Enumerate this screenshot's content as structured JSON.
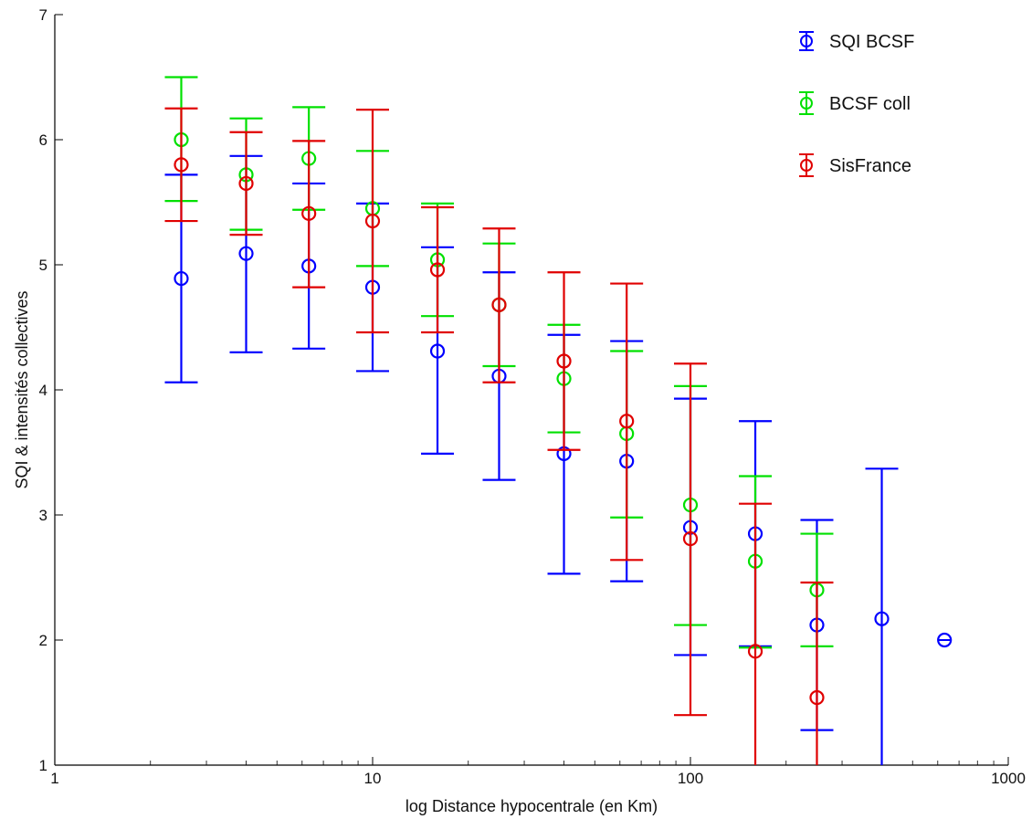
{
  "chart_data": {
    "type": "scatter",
    "xscale": "log",
    "xlim": [
      1,
      1000
    ],
    "ylim": [
      1,
      7
    ],
    "xticks": [
      1,
      10,
      100,
      1000
    ],
    "xtick_labels": [
      "1",
      "10",
      "100",
      "1000"
    ],
    "yticks": [
      1,
      2,
      3,
      4,
      5,
      6,
      7
    ],
    "ytick_labels": [
      "1",
      "2",
      "3",
      "4",
      "5",
      "6",
      "7"
    ],
    "xlabel": "log Distance hypocentrale (en Km)",
    "ylabel": "SQI & intensités collectives",
    "grid": false,
    "legend_position": "top-right",
    "series": [
      {
        "name": "SQI BCSF",
        "color": "#0000ff",
        "points": [
          {
            "x": 2.5,
            "y": 4.89,
            "lower": 4.06,
            "upper": 5.72
          },
          {
            "x": 4.0,
            "y": 5.09,
            "lower": 4.3,
            "upper": 5.87
          },
          {
            "x": 6.3,
            "y": 4.99,
            "lower": 4.33,
            "upper": 5.65
          },
          {
            "x": 10,
            "y": 4.82,
            "lower": 4.15,
            "upper": 5.49
          },
          {
            "x": 16,
            "y": 4.31,
            "lower": 3.49,
            "upper": 5.14
          },
          {
            "x": 25,
            "y": 4.11,
            "lower": 3.28,
            "upper": 4.94
          },
          {
            "x": 40,
            "y": 3.49,
            "lower": 2.53,
            "upper": 4.44
          },
          {
            "x": 63,
            "y": 3.43,
            "lower": 2.47,
            "upper": 4.39
          },
          {
            "x": 100,
            "y": 2.9,
            "lower": 1.88,
            "upper": 3.93
          },
          {
            "x": 160,
            "y": 2.85,
            "lower": 1.95,
            "upper": 3.75
          },
          {
            "x": 250,
            "y": 2.12,
            "lower": 1.28,
            "upper": 2.96
          },
          {
            "x": 400,
            "y": 2.17,
            "lower": 0.98,
            "upper": 3.37
          },
          {
            "x": 630,
            "y": 2.0,
            "lower": 2.0,
            "upper": 2.0
          }
        ]
      },
      {
        "name": "BCSF coll",
        "color": "#00e000",
        "points": [
          {
            "x": 2.5,
            "y": 6.0,
            "lower": 5.51,
            "upper": 6.5
          },
          {
            "x": 4.0,
            "y": 5.72,
            "lower": 5.28,
            "upper": 6.17
          },
          {
            "x": 6.3,
            "y": 5.85,
            "lower": 5.44,
            "upper": 6.26
          },
          {
            "x": 10,
            "y": 5.45,
            "lower": 4.99,
            "upper": 5.91
          },
          {
            "x": 16,
            "y": 5.04,
            "lower": 4.59,
            "upper": 5.49
          },
          {
            "x": 25,
            "y": 4.68,
            "lower": 4.19,
            "upper": 5.17
          },
          {
            "x": 40,
            "y": 4.09,
            "lower": 3.66,
            "upper": 4.52
          },
          {
            "x": 63,
            "y": 3.65,
            "lower": 2.98,
            "upper": 4.31
          },
          {
            "x": 100,
            "y": 3.08,
            "lower": 2.12,
            "upper": 4.03
          },
          {
            "x": 160,
            "y": 2.63,
            "lower": 1.94,
            "upper": 3.31
          },
          {
            "x": 250,
            "y": 2.4,
            "lower": 1.95,
            "upper": 2.85
          }
        ]
      },
      {
        "name": "SisFrance",
        "color": "#e00000",
        "points": [
          {
            "x": 2.5,
            "y": 5.8,
            "lower": 5.35,
            "upper": 6.25
          },
          {
            "x": 4.0,
            "y": 5.65,
            "lower": 5.24,
            "upper": 6.06
          },
          {
            "x": 6.3,
            "y": 5.41,
            "lower": 4.82,
            "upper": 5.99
          },
          {
            "x": 10,
            "y": 5.35,
            "lower": 4.46,
            "upper": 6.24
          },
          {
            "x": 16,
            "y": 4.96,
            "lower": 4.46,
            "upper": 5.46
          },
          {
            "x": 25,
            "y": 4.68,
            "lower": 4.06,
            "upper": 5.29
          },
          {
            "x": 40,
            "y": 4.23,
            "lower": 3.52,
            "upper": 4.94
          },
          {
            "x": 63,
            "y": 3.75,
            "lower": 2.64,
            "upper": 4.85
          },
          {
            "x": 100,
            "y": 2.81,
            "lower": 1.4,
            "upper": 4.21
          },
          {
            "x": 160,
            "y": 1.91,
            "lower": 0.72,
            "upper": 3.09
          },
          {
            "x": 250,
            "y": 1.54,
            "lower": 0.61,
            "upper": 2.46
          }
        ]
      }
    ]
  }
}
